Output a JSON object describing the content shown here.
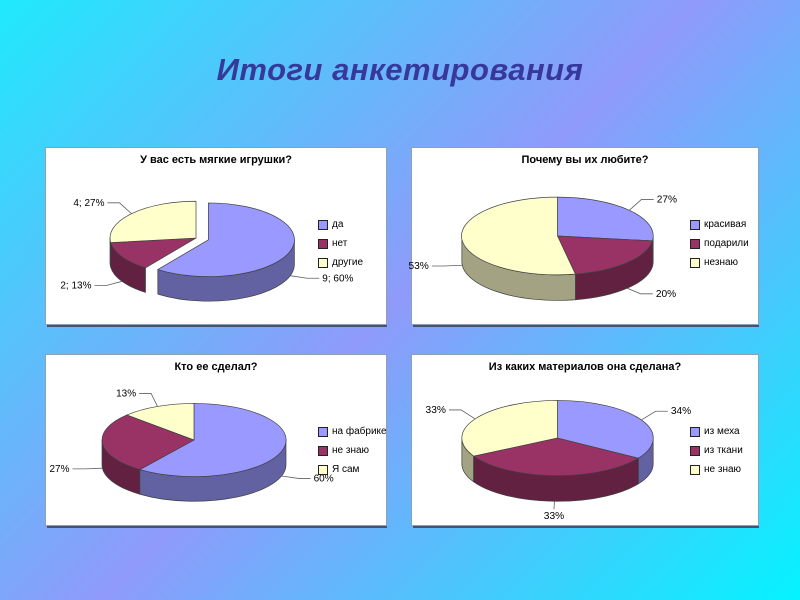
{
  "slide": {
    "title": "Итоги анкетирования"
  },
  "theme": {
    "background_gradient": [
      "#1FE9FC",
      "#8F9AFA",
      "#05F3FF"
    ],
    "title_color": "#38389B",
    "panel_background": "#FFFFFF",
    "outline_color": "#404040",
    "label_color": "#000000",
    "slice_palette": [
      "#9999FF",
      "#993366",
      "#FFFFCC"
    ]
  },
  "chart_data": [
    {
      "type": "pie",
      "style": "3d-exploded",
      "title": "У вас есть мягкие игрушки?",
      "legend_position": "right",
      "slices": [
        {
          "label": "да",
          "value": 9,
          "percent": 60,
          "data_label": "9; 60%",
          "color": "#9999FF",
          "exploded": true
        },
        {
          "label": "нет",
          "value": 2,
          "percent": 13,
          "data_label": "2; 13%",
          "color": "#993366",
          "exploded": false
        },
        {
          "label": "другие",
          "value": 4,
          "percent": 27,
          "data_label": "4; 27%",
          "color": "#FFFFCC",
          "exploded": false
        }
      ]
    },
    {
      "type": "pie",
      "style": "3d",
      "title": "Почему вы их любите?",
      "legend_position": "right",
      "slices": [
        {
          "label": "красивая",
          "percent": 27,
          "data_label": "27%",
          "color": "#9999FF",
          "exploded": false
        },
        {
          "label": "подарили",
          "percent": 20,
          "data_label": "20%",
          "color": "#993366",
          "exploded": false
        },
        {
          "label": "незнаю",
          "percent": 53,
          "data_label": "53%",
          "color": "#FFFFCC",
          "exploded": false
        }
      ]
    },
    {
      "type": "pie",
      "style": "3d",
      "title": "Кто ее сделал?",
      "legend_position": "right",
      "slices": [
        {
          "label": "на фабрике",
          "percent": 60,
          "data_label": "60%",
          "color": "#9999FF",
          "exploded": false
        },
        {
          "label": "не знаю",
          "percent": 27,
          "data_label": "27%",
          "color": "#993366",
          "exploded": false
        },
        {
          "label": "Я сам",
          "percent": 13,
          "data_label": "13%",
          "color": "#FFFFCC",
          "exploded": false
        }
      ]
    },
    {
      "type": "pie",
      "style": "3d",
      "title": "Из каких материалов она сделана?",
      "legend_position": "right",
      "slices": [
        {
          "label": "из меха",
          "percent": 34,
          "data_label": "34%",
          "color": "#9999FF",
          "exploded": false
        },
        {
          "label": "из ткани",
          "percent": 33,
          "data_label": "33%",
          "color": "#993366",
          "exploded": false
        },
        {
          "label": "не знаю",
          "percent": 33,
          "data_label": "33%",
          "color": "#FFFFCC",
          "exploded": false
        }
      ]
    }
  ]
}
